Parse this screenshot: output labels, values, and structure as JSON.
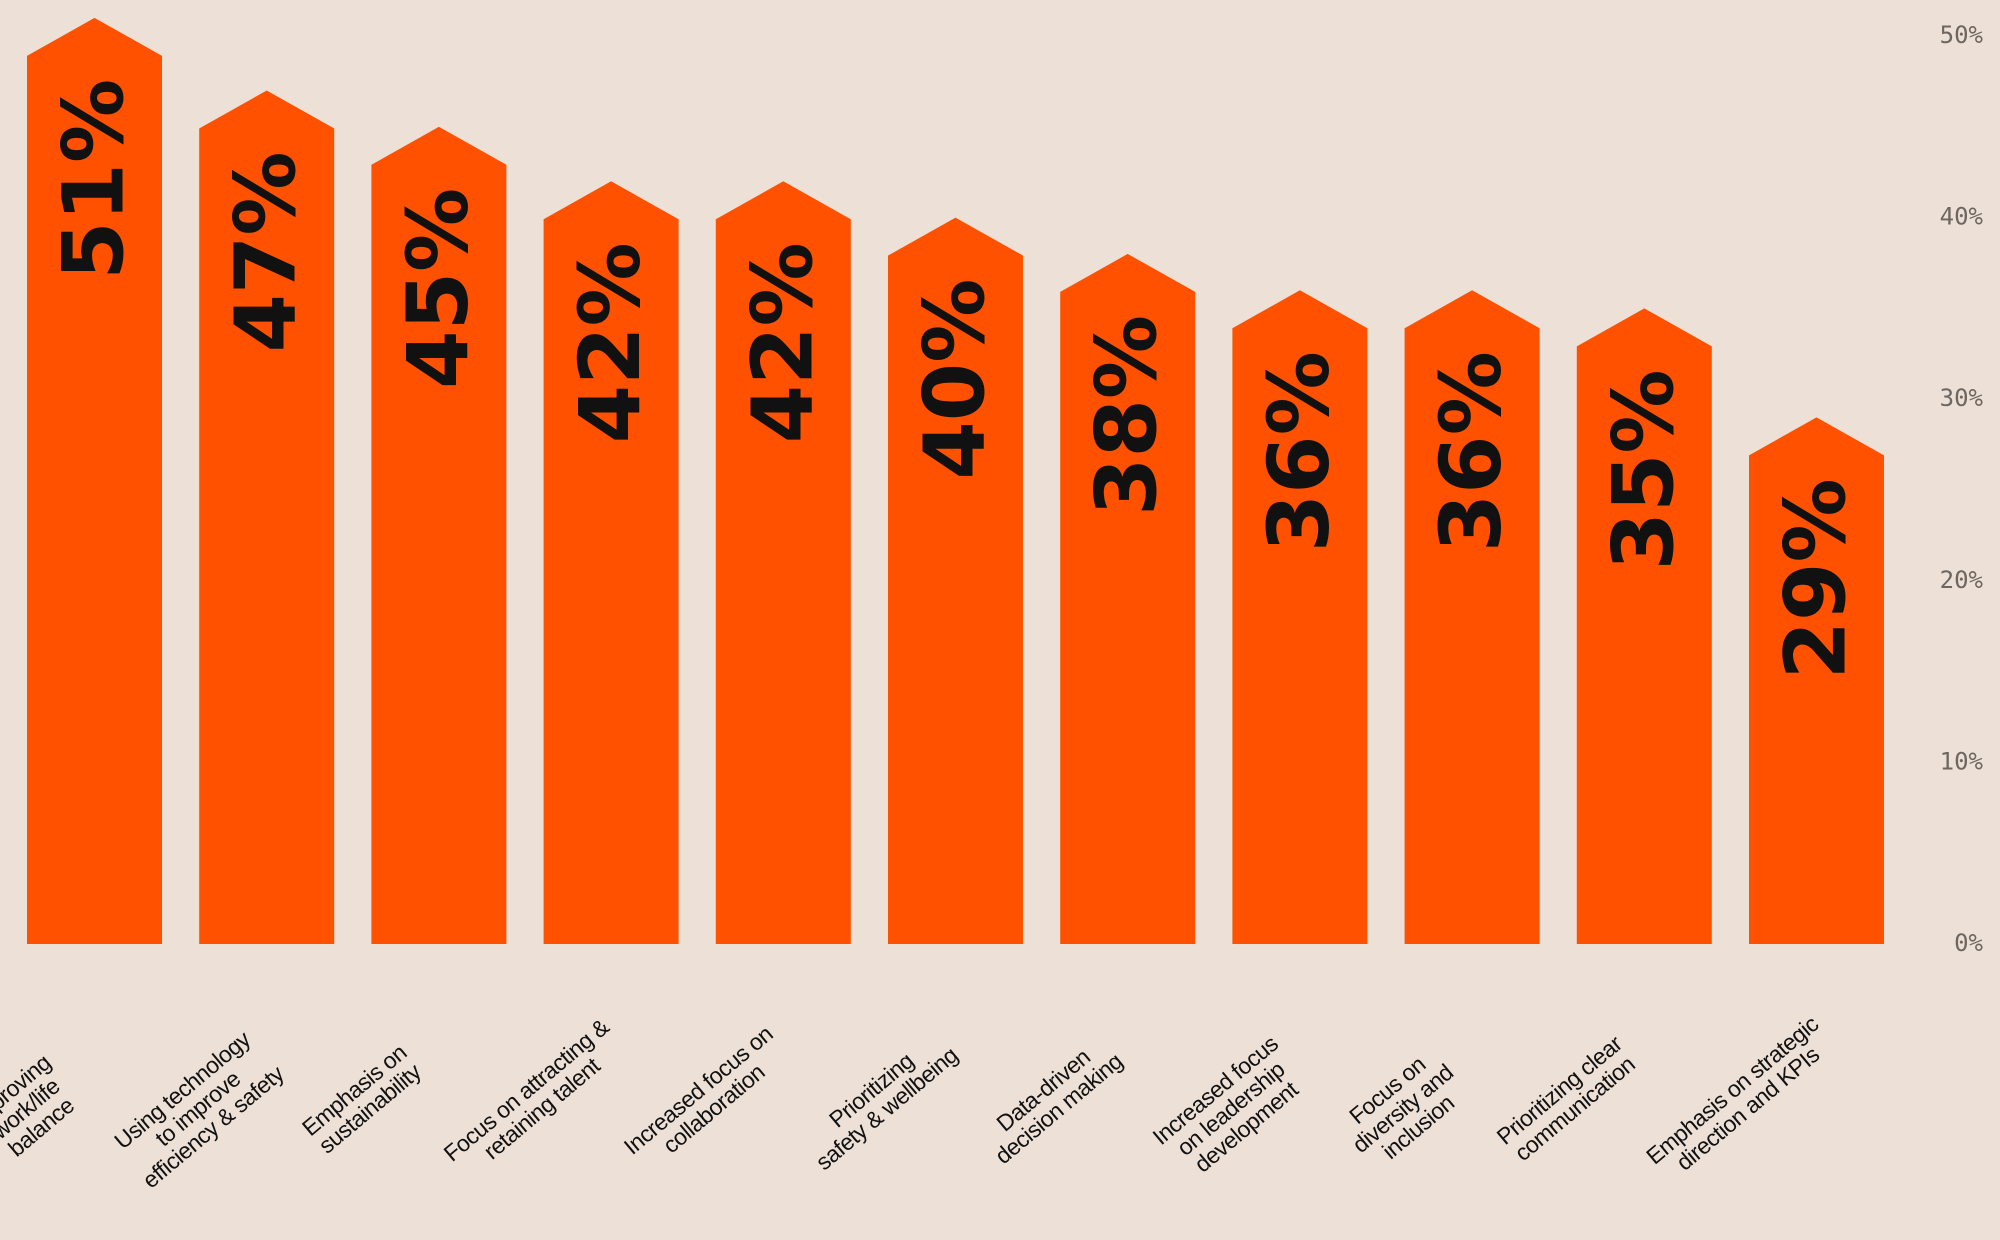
{
  "chart_data": {
    "type": "bar",
    "categories": [
      "Improving\nwork/life\nbalance",
      "Using technology\nto improve\nefficiency & safety",
      "Emphasis on\nsustainability",
      "Focus on attracting &\nretaining talent",
      "Increased focus on\ncollaboration",
      "Prioritizing\nsafety & wellbeing",
      "Data-driven\ndecision making",
      "Increased focus\non leadership\ndevelopment",
      "Focus on\ndiversity and\ninclusion",
      "Prioritizing clear\ncommunication",
      "Emphasis on strategic\ndirection and KPIs"
    ],
    "values": [
      51,
      47,
      45,
      42,
      42,
      40,
      38,
      36,
      36,
      35,
      29
    ],
    "value_labels": [
      "51%",
      "47%",
      "45%",
      "42%",
      "42%",
      "40%",
      "38%",
      "36%",
      "36%",
      "35%",
      "29%"
    ],
    "color": "#ff5100",
    "ylim": [
      0,
      50
    ],
    "yticks": [
      {
        "value": 0,
        "label": "0%"
      },
      {
        "value": 10,
        "label": "10%"
      },
      {
        "value": 20,
        "label": "20%"
      },
      {
        "value": 30,
        "label": "30%"
      },
      {
        "value": 40,
        "label": "40%"
      },
      {
        "value": 50,
        "label": "50%"
      }
    ]
  }
}
